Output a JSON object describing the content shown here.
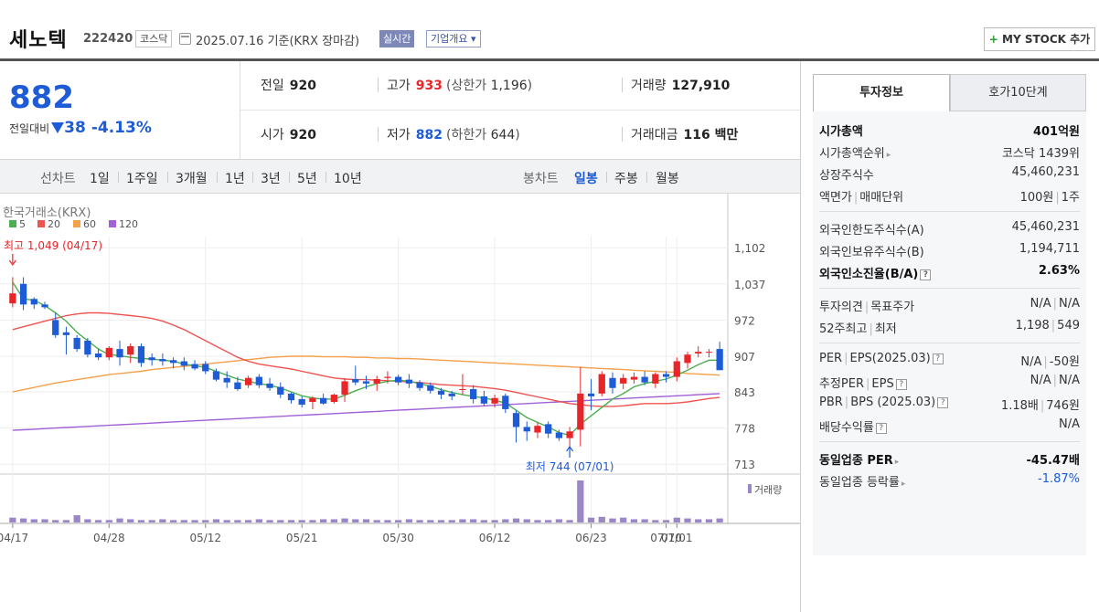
{
  "header": {
    "name": "세노텍",
    "code": "222420",
    "market": "코스닥",
    "date": "2025.07.16  기준(KRX 장마감)",
    "live_label": "실시간",
    "company_info_label": "기업개요 ▾",
    "mystock_label": "MY STOCK 추가",
    "mystock_plus": "+"
  },
  "price": {
    "current": "882",
    "change_label": "전일대비",
    "change_amount": "38",
    "change_pct": "-4.13%"
  },
  "quote": {
    "prev_label": "전일",
    "prev_value": "920",
    "high_label": "고가",
    "high_value": "933",
    "upper_label": "(상한가",
    "upper_value": "1,196",
    "upper_close": ")",
    "volume_label": "거래량",
    "volume_value": "127,910",
    "open_label": "시가",
    "open_value": "920",
    "low_label": "저가",
    "low_value": "882",
    "lower_label": "(하한가",
    "lower_value": "644",
    "lower_close": ")",
    "amount_label": "거래대금",
    "amount_value": "116 백만"
  },
  "chart_tabs": {
    "line_label": "선차트",
    "line_items": [
      "1일",
      "1주일",
      "3개월",
      "1년",
      "3년",
      "5년",
      "10년"
    ],
    "candle_label": "봉차트",
    "candle_items": [
      "일봉",
      "주봉",
      "월봉"
    ],
    "candle_active": "일봉"
  },
  "chart_data": {
    "type": "candlestick",
    "source_label": "한국거래소(KRX)",
    "legend": [
      {
        "name": "5",
        "color": "#4caf50"
      },
      {
        "name": "20",
        "color": "#ef5350"
      },
      {
        "name": "60",
        "color": "#f5a04a"
      },
      {
        "name": "120",
        "color": "#a060d8"
      }
    ],
    "y_ticks": [
      "1,102",
      "1,037",
      "972",
      "907",
      "843",
      "778",
      "713"
    ],
    "y_range": [
      697,
      1122
    ],
    "x_ticks": [
      "04/17",
      "04/28",
      "05/12",
      "05/21",
      "05/30",
      "06/12",
      "06/23",
      "07/01",
      "07/10"
    ],
    "max_annotation": "최고 1,049 (04/17)",
    "min_annotation": "최저 744 (07/01)",
    "volume_label": "거래량",
    "up_color": "#e8262a",
    "down_color": "#1e5bd6",
    "candles": [
      [
        1002,
        1049,
        995,
        1020
      ],
      [
        1037,
        1049,
        990,
        1000
      ],
      [
        1010,
        1013,
        992,
        1000
      ],
      [
        1000,
        1005,
        992,
        995
      ],
      [
        972,
        985,
        940,
        945
      ],
      [
        950,
        960,
        910,
        945
      ],
      [
        940,
        945,
        915,
        920
      ],
      [
        935,
        940,
        905,
        910
      ],
      [
        912,
        920,
        900,
        905
      ],
      [
        905,
        925,
        900,
        922
      ],
      [
        920,
        935,
        890,
        905
      ],
      [
        910,
        930,
        895,
        925
      ],
      [
        925,
        930,
        888,
        895
      ],
      [
        905,
        912,
        890,
        900
      ],
      [
        902,
        912,
        890,
        898
      ],
      [
        900,
        905,
        885,
        895
      ],
      [
        898,
        905,
        882,
        890
      ],
      [
        893,
        900,
        882,
        885
      ],
      [
        893,
        898,
        875,
        880
      ],
      [
        880,
        885,
        862,
        865
      ],
      [
        868,
        880,
        850,
        860
      ],
      [
        860,
        870,
        845,
        848
      ],
      [
        855,
        872,
        850,
        868
      ],
      [
        870,
        875,
        850,
        855
      ],
      [
        858,
        868,
        845,
        850
      ],
      [
        852,
        860,
        832,
        838
      ],
      [
        840,
        842,
        822,
        828
      ],
      [
        830,
        835,
        815,
        820
      ],
      [
        825,
        835,
        812,
        832
      ],
      [
        832,
        840,
        820,
        822
      ],
      [
        825,
        840,
        822,
        838
      ],
      [
        838,
        868,
        825,
        862
      ],
      [
        866,
        890,
        855,
        860
      ],
      [
        862,
        872,
        848,
        858
      ],
      [
        858,
        872,
        845,
        866
      ],
      [
        868,
        880,
        858,
        870
      ],
      [
        870,
        874,
        855,
        860
      ],
      [
        865,
        875,
        850,
        858
      ],
      [
        860,
        864,
        845,
        850
      ],
      [
        855,
        860,
        840,
        845
      ],
      [
        845,
        850,
        830,
        838
      ],
      [
        840,
        845,
        828,
        835
      ],
      [
        848,
        875,
        838,
        848
      ],
      [
        848,
        855,
        822,
        830
      ],
      [
        835,
        845,
        818,
        822
      ],
      [
        822,
        838,
        815,
        832
      ],
      [
        836,
        840,
        805,
        812
      ],
      [
        805,
        810,
        752,
        780
      ],
      [
        780,
        790,
        755,
        772
      ],
      [
        770,
        788,
        760,
        782
      ],
      [
        785,
        790,
        760,
        768
      ],
      [
        770,
        775,
        755,
        760
      ],
      [
        760,
        780,
        744,
        772
      ],
      [
        775,
        888,
        745,
        840
      ],
      [
        840,
        866,
        810,
        835
      ],
      [
        840,
        880,
        835,
        875
      ],
      [
        868,
        878,
        840,
        850
      ],
      [
        858,
        875,
        848,
        868
      ],
      [
        865,
        878,
        858,
        870
      ],
      [
        870,
        880,
        855,
        860
      ],
      [
        858,
        878,
        850,
        875
      ],
      [
        875,
        880,
        860,
        870
      ],
      [
        870,
        905,
        862,
        898
      ],
      [
        895,
        915,
        885,
        910
      ],
      [
        912,
        925,
        905,
        915
      ],
      [
        915,
        920,
        905,
        915
      ],
      [
        920,
        933,
        882,
        882
      ]
    ],
    "ma5": [
      1040,
      1010,
      1008,
      998,
      985,
      970,
      950,
      935,
      920,
      910,
      908,
      905,
      903,
      902,
      900,
      898,
      893,
      890,
      887,
      880,
      873,
      866,
      862,
      858,
      855,
      850,
      843,
      836,
      832,
      830,
      830,
      837,
      845,
      852,
      858,
      862,
      864,
      862,
      858,
      853,
      847,
      842,
      838,
      835,
      832,
      828,
      823,
      810,
      797,
      788,
      780,
      770,
      765,
      785,
      800,
      815,
      830,
      840,
      852,
      858,
      862,
      866,
      873,
      882,
      892,
      900,
      900
    ],
    "ma20": [
      955,
      960,
      965,
      970,
      975,
      980,
      983,
      985,
      985,
      984,
      982,
      980,
      978,
      975,
      970,
      963,
      955,
      945,
      935,
      925,
      915,
      905,
      898,
      893,
      890,
      887,
      884,
      880,
      876,
      872,
      868,
      866,
      865,
      865,
      864,
      863,
      862,
      861,
      860,
      858,
      856,
      855,
      854,
      853,
      851,
      849,
      846,
      842,
      838,
      834,
      830,
      826,
      822,
      820,
      818,
      817,
      817,
      818,
      820,
      822,
      822,
      822,
      823,
      825,
      828,
      831,
      833
    ],
    "ma60": [
      843,
      847,
      851,
      855,
      859,
      862,
      865,
      868,
      871,
      874,
      876,
      878,
      880,
      883,
      885,
      887,
      889,
      891,
      893,
      895,
      897,
      899,
      901,
      903,
      905,
      906,
      907,
      907,
      907,
      906,
      906,
      906,
      905,
      905,
      904,
      904,
      903,
      903,
      902,
      901,
      900,
      899,
      898,
      897,
      896,
      895,
      894,
      893,
      892,
      891,
      890,
      889,
      888,
      887,
      886,
      885,
      884,
      883,
      882,
      881,
      880,
      879,
      878,
      876,
      875,
      874,
      873
    ],
    "ma120": [
      774,
      775,
      776,
      777,
      778,
      779,
      780,
      781,
      782,
      783,
      784,
      785,
      786,
      787,
      788,
      789,
      790,
      791,
      792,
      793,
      794,
      795,
      796,
      797,
      798,
      799,
      800,
      801,
      802,
      803,
      804,
      805,
      806,
      807,
      808,
      809,
      810,
      811,
      812,
      813,
      814,
      815,
      816,
      817,
      818,
      819,
      820,
      821,
      822,
      823,
      824,
      825,
      826,
      827,
      828,
      829,
      830,
      831,
      832,
      833,
      834,
      835,
      836,
      837,
      838,
      839,
      840
    ],
    "volumes": [
      6,
      5,
      4,
      4,
      3,
      3,
      9,
      4,
      3,
      3,
      5,
      4,
      3,
      3,
      4,
      3,
      3,
      3,
      3,
      4,
      3,
      3,
      3,
      4,
      3,
      3,
      3,
      3,
      3,
      4,
      4,
      5,
      4,
      4,
      3,
      3,
      3,
      4,
      3,
      3,
      3,
      3,
      4,
      4,
      3,
      3,
      4,
      5,
      4,
      3,
      3,
      4,
      3,
      52,
      6,
      7,
      5,
      6,
      4,
      4,
      3,
      3,
      6,
      5,
      4,
      4,
      5
    ]
  },
  "right_panel": {
    "tab_active": "투자정보",
    "tab_other": "호가10단계",
    "g1": {
      "cap_label": "시가총액",
      "cap_value": "401억원",
      "rank_label": "시가총액순위",
      "rank_value": "코스닥 1439위",
      "shares_label": "상장주식수",
      "shares_value": "45,460,231",
      "par_label1": "액면가",
      "par_label2": "매매단위",
      "par_value1": "100원",
      "par_value2": "1주"
    },
    "g2": {
      "limit_label": "외국인한도주식수(A)",
      "limit_value": "45,460,231",
      "hold_label": "외국인보유주식수(B)",
      "hold_value": "1,194,711",
      "ratio_label": "외국인소진율(B/A)",
      "ratio_value": "2.63%"
    },
    "g3": {
      "opinion_label1": "투자의견",
      "opinion_label2": "목표주가",
      "opinion_value": "N/A",
      "target_value": "N/A",
      "w52_label1": "52주최고",
      "w52_label2": "최저",
      "w52_high": "1,198",
      "w52_low": "549"
    },
    "g4": {
      "per_label1": "PER",
      "per_label2": "EPS(2025.03)",
      "per_value": "N/A",
      "eps_value": "-50원",
      "eper_label1": "추정PER",
      "eper_label2": "EPS",
      "eper_value": "N/A",
      "eeps_value": "N/A",
      "pbr_label1": "PBR",
      "pbr_label2": "BPS (2025.03)",
      "pbr_value": "1.18배",
      "bps_value": "746원",
      "div_label": "배당수익률",
      "div_value": "N/A"
    },
    "g5": {
      "iper_label": "동일업종 PER",
      "iper_value": "-45.47배",
      "irate_label": "동일업종 등락률",
      "irate_value": "-1.87%"
    }
  }
}
